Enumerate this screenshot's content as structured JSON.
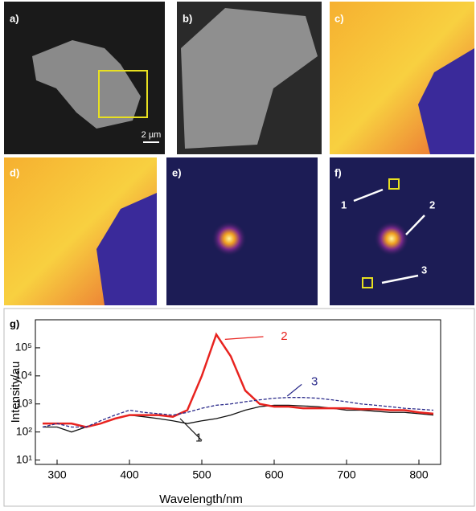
{
  "panels": [
    {
      "label": "a)",
      "scale_bar": "2 µm"
    },
    {
      "label": "b)"
    },
    {
      "label": "c)"
    },
    {
      "label": "d)"
    },
    {
      "label": "e)"
    },
    {
      "label": "f)",
      "annotations": [
        "1",
        "2",
        "3"
      ]
    }
  ],
  "chart_data": {
    "type": "line",
    "panel_label": "g)",
    "x_label": "Wavelength/nm",
    "y_label": "Intensity/au",
    "x": [
      280,
      300,
      320,
      340,
      360,
      380,
      400,
      420,
      440,
      460,
      480,
      500,
      520,
      540,
      560,
      580,
      600,
      620,
      640,
      660,
      680,
      700,
      720,
      740,
      760,
      780,
      800,
      820
    ],
    "series": [
      {
        "name": "1",
        "color": "#111111",
        "dash": false,
        "values": [
          150,
          150,
          100,
          150,
          200,
          300,
          400,
          350,
          300,
          250,
          200,
          250,
          300,
          400,
          600,
          800,
          900,
          900,
          850,
          800,
          700,
          600,
          600,
          550,
          500,
          500,
          450,
          400
        ]
      },
      {
        "name": "2",
        "color": "#e8231f",
        "dash": false,
        "values": [
          200,
          200,
          200,
          150,
          200,
          300,
          400,
          400,
          400,
          350,
          600,
          10000,
          300000,
          50000,
          3000,
          1000,
          800,
          800,
          700,
          700,
          700,
          700,
          650,
          650,
          600,
          600,
          500,
          450
        ]
      },
      {
        "name": "3",
        "color": "#2a2a8a",
        "dash": true,
        "values": [
          150,
          200,
          150,
          150,
          250,
          400,
          600,
          500,
          450,
          400,
          500,
          700,
          900,
          1000,
          1200,
          1400,
          1600,
          1700,
          1700,
          1600,
          1400,
          1200,
          1000,
          900,
          800,
          700,
          650,
          600
        ]
      }
    ],
    "xlim": [
      270,
      830
    ],
    "xticks": [
      300,
      400,
      500,
      600,
      700,
      800
    ],
    "ylim": [
      7,
      1000000
    ],
    "log_y": true,
    "yticks": [
      {
        "value": 10,
        "label": "10¹"
      },
      {
        "value": 100,
        "label": "10²"
      },
      {
        "value": 1000,
        "label": "10³"
      },
      {
        "value": 10000,
        "label": "10⁴"
      },
      {
        "value": 100000,
        "label": "10⁵"
      }
    ]
  }
}
